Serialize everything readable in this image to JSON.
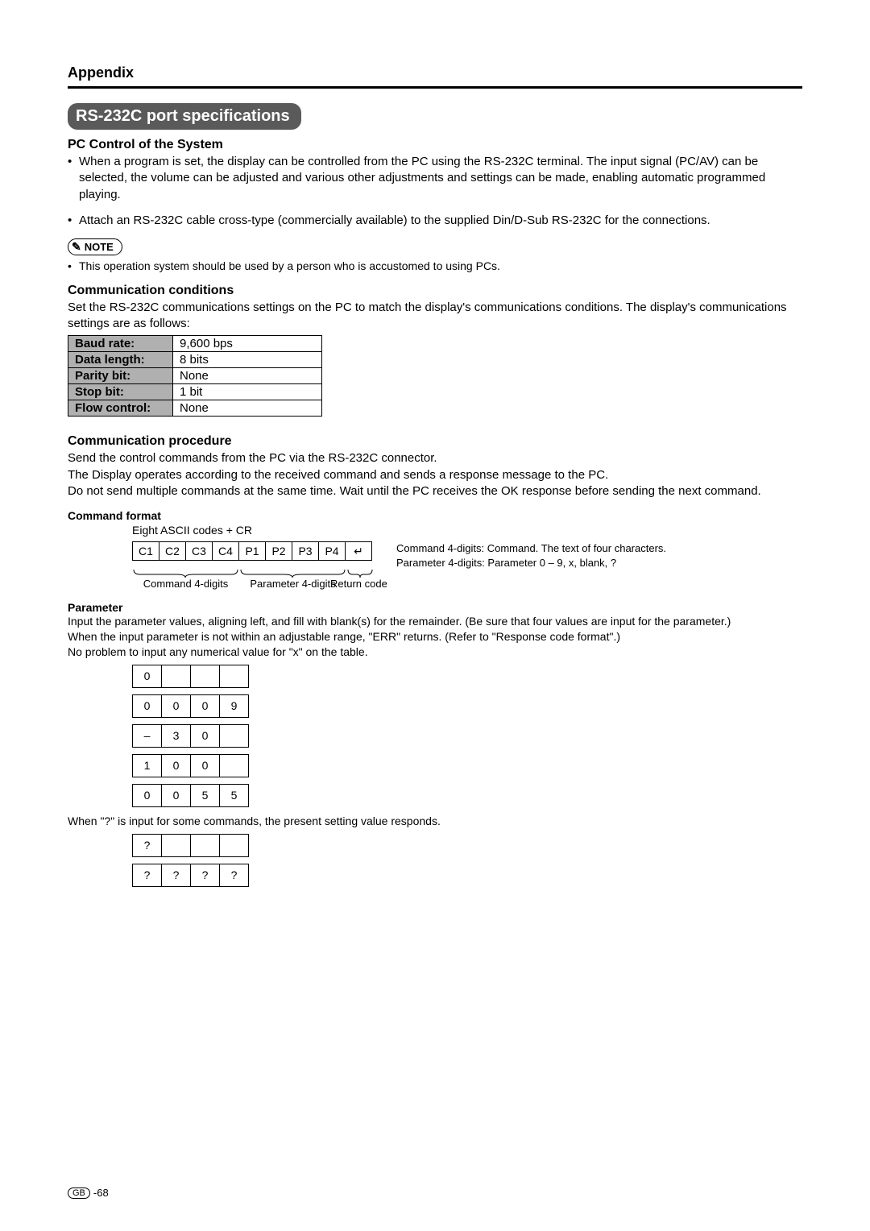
{
  "appendix_title": "Appendix",
  "section_banner": "RS-232C port specifications",
  "pc_control_head": "PC Control of the System",
  "bullet1": "When a program is set, the display can be controlled from the PC using the RS-232C terminal. The input signal (PC/AV) can be selected, the volume can be adjusted and various other adjustments and settings can be made, enabling automatic programmed playing.",
  "bullet2": "Attach an RS-232C cable cross-type (commercially available) to the supplied Din/D-Sub RS-232C for the connections.",
  "note_label": "NOTE",
  "note_bullet": "This operation system should be used by a person who is accustomed to using PCs.",
  "comm_cond_head": "Communication conditions",
  "comm_cond_text": "Set the RS-232C communications settings on the PC to match the display's communications conditions. The display's communications settings are as follows:",
  "comm_table": {
    "rows": [
      {
        "label": "Baud rate:",
        "val": "9,600 bps"
      },
      {
        "label": "Data length:",
        "val": "8 bits"
      },
      {
        "label": "Parity bit:",
        "val": "None"
      },
      {
        "label": "Stop bit:",
        "val": "1 bit"
      },
      {
        "label": "Flow control:",
        "val": "None"
      }
    ]
  },
  "comm_proc_head": "Communication procedure",
  "comm_proc_text": "Send the control commands from the PC via the RS-232C connector.\nThe Display operates according to the received command and sends a response message to the PC.\nDo not send multiple commands at the same time. Wait until the PC receives the OK response before sending the next command.",
  "cmd_format_head": "Command format",
  "eight_codes": "Eight ASCII codes + CR",
  "cmd_cells": [
    "C1",
    "C2",
    "C3",
    "C4",
    "P1",
    "P2",
    "P3",
    "P4",
    "↵"
  ],
  "cmd_desc1": "Command 4-digits: Command. The text of four characters.",
  "cmd_desc2": "Parameter 4-digits: Parameter 0 – 9, x, blank, ?",
  "brace_labels": {
    "cmd": "Command 4-digits",
    "param": "Parameter 4-digits",
    "ret": "Return code"
  },
  "param_head": "Parameter",
  "param_text1": "Input the parameter values, aligning left, and fill with blank(s) for the remainder. (Be sure that four values are input for the parameter.)",
  "param_text2": "When the input parameter is not within an adjustable range, \"ERR\" returns. (Refer to \"Response code format\".)",
  "param_text3": "No problem to input any numerical value for \"x\" on the table.",
  "param_tables": [
    [
      "0",
      "",
      "",
      ""
    ],
    [
      "0",
      "0",
      "0",
      "9"
    ],
    [
      "–",
      "3",
      "0",
      ""
    ],
    [
      "1",
      "0",
      "0",
      ""
    ],
    [
      "0",
      "0",
      "5",
      "5"
    ]
  ],
  "when_q_text": "When \"?\" is input for some commands, the present setting value responds.",
  "q_tables": [
    [
      "?",
      "",
      "",
      ""
    ],
    [
      "?",
      "?",
      "?",
      "?"
    ]
  ],
  "footer": {
    "gb": "GB",
    "page": "-68"
  }
}
